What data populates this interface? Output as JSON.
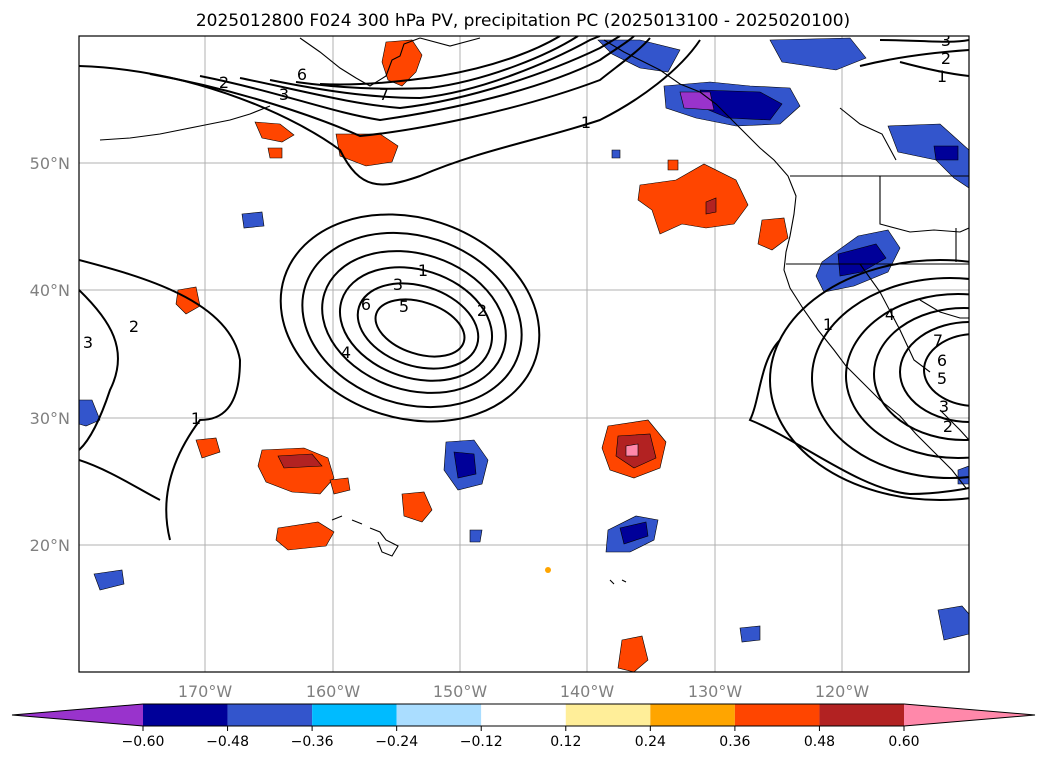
{
  "title": "2025012800 F024 300 hPa PV, precipitation PC (2025013100 - 2025020100)",
  "map": {
    "lat_labels": [
      "50°N",
      "40°N",
      "30°N",
      "20°N"
    ],
    "lon_labels": [
      "170°W",
      "160°W",
      "150°W",
      "140°W",
      "130°W",
      "120°W"
    ],
    "grid": true
  },
  "colorbar": {
    "colors": [
      "#9933cc",
      "#000099",
      "#3355cc",
      "#00bbff",
      "#aaddff",
      "#ffffff",
      "#ffee99",
      "#ffa500",
      "#ff4500",
      "#b22222",
      "#ff88aa"
    ],
    "tick_labels": [
      "−0.60",
      "−0.48",
      "−0.36",
      "−0.24",
      "−0.12",
      "0.12",
      "0.24",
      "0.36",
      "0.48",
      "0.60"
    ],
    "extend": "both"
  },
  "contour_labels": {
    "pv_low_center": [
      "1",
      "2",
      "3",
      "4",
      "5",
      "6"
    ],
    "west_trough": [
      "2",
      "3",
      "6",
      "7",
      "1"
    ],
    "northeast": [
      "3",
      "2",
      "1"
    ],
    "east_low": [
      "1",
      "4",
      "7",
      "6",
      "5",
      "3",
      "2"
    ],
    "southwest": [
      "2",
      "3",
      "1"
    ]
  }
}
